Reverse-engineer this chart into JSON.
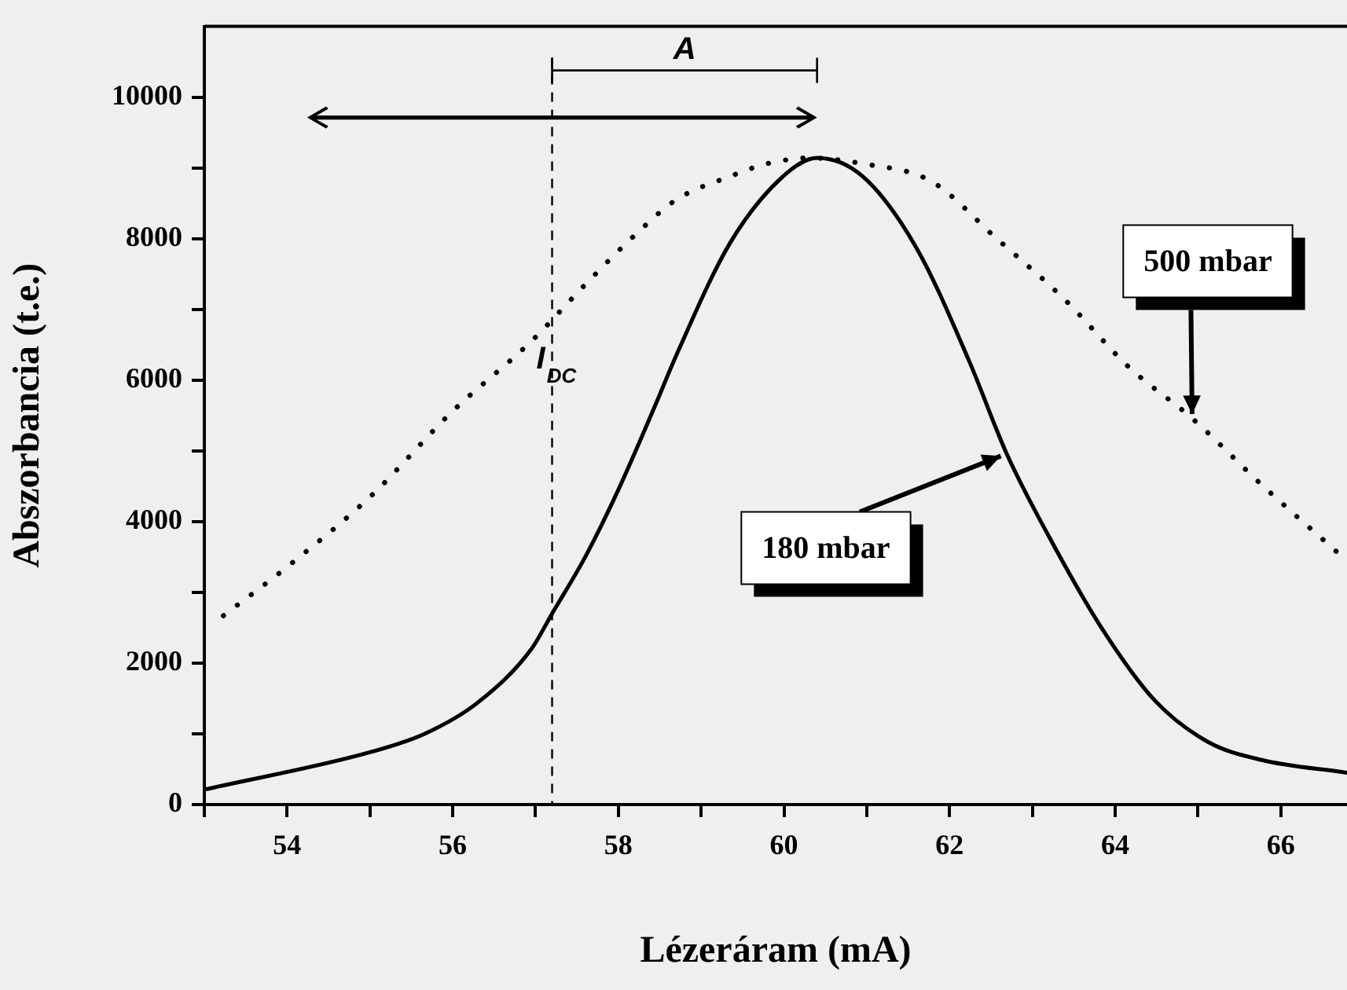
{
  "chart_data": {
    "type": "line",
    "xlabel": "Lézeráram (mA)",
    "ylabel": "Abszorbancia (t.e.)",
    "xlim": [
      53,
      66.8
    ],
    "xticks": [
      {
        "value": 53,
        "label": null
      },
      54,
      {
        "value": 55,
        "label": null
      },
      56,
      {
        "value": 57,
        "label": null
      },
      58,
      {
        "value": 59,
        "label": null
      },
      60,
      {
        "value": 61,
        "label": null
      },
      62,
      {
        "value": 63,
        "label": null
      },
      64,
      {
        "value": 65,
        "label": null
      },
      66
    ],
    "ylim": [
      0,
      11000
    ],
    "yticks": [
      0,
      {
        "value": 1000,
        "label": null
      },
      2000,
      {
        "value": 3000,
        "label": null
      },
      4000,
      {
        "value": 5000,
        "label": null
      },
      6000,
      {
        "value": 7000,
        "label": null
      },
      8000,
      {
        "value": 9000,
        "label": null
      },
      10000
    ],
    "grid": false,
    "legend": false,
    "marker": "none",
    "annotations": [
      "A"
    ],
    "series": [
      {
        "name": "180 mbar",
        "color": "#000000",
        "line_style": "solid",
        "x": [
          53.03,
          55.0,
          55.66,
          56.3,
          56.95,
          57.2,
          57.6,
          58.0,
          58.43,
          58.7,
          59.35,
          59.99,
          60.4,
          60.95,
          61.6,
          62.24,
          62.69,
          63.2,
          63.84,
          64.48,
          65.13,
          65.77,
          66.8
        ],
        "values": [
          220,
          740,
          1000,
          1440,
          2200,
          2700,
          3500,
          4450,
          5600,
          6350,
          7940,
          8880,
          9140,
          8880,
          7870,
          6260,
          4960,
          3790,
          2490,
          1470,
          880,
          630,
          450
        ]
      },
      {
        "name": "500 mbar",
        "color": "#000000",
        "line_style": "dotted",
        "x": [
          53.23,
          54.0,
          55.02,
          55.98,
          56.95,
          57.6,
          58.2,
          58.7,
          59.35,
          59.8,
          60.31,
          60.95,
          61.78,
          62.56,
          63.39,
          64.16,
          64.93,
          65.77,
          66.67
        ],
        "values": [
          2670,
          3360,
          4370,
          5540,
          6550,
          7350,
          8050,
          8550,
          8880,
          9060,
          9140,
          9060,
          8810,
          8010,
          7140,
          6190,
          5460,
          4520,
          3580
        ]
      }
    ],
    "ref_lines": [
      {
        "axis": "x",
        "value": 57.2,
        "label": "I$_{DC}$",
        "line_style": "dashed"
      }
    ]
  }
}
